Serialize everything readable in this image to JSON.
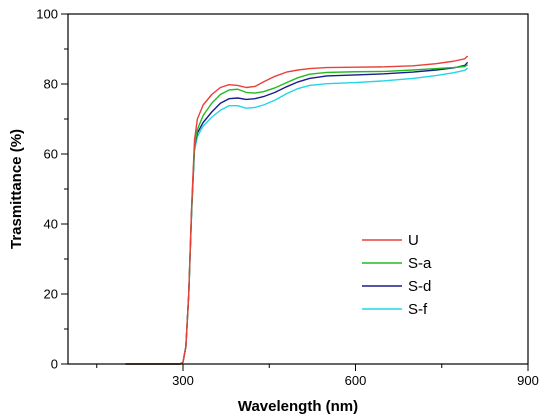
{
  "chart_data": {
    "type": "line",
    "title": "",
    "xlabel": "Wavelength (nm)",
    "ylabel": "Trasmittance (%)",
    "xlim": [
      100,
      900
    ],
    "ylim": [
      0,
      100
    ],
    "x_ticks": [
      300,
      600,
      900
    ],
    "y_ticks": [
      0,
      20,
      40,
      60,
      80,
      100
    ],
    "legend_position": "center-right",
    "grid": false,
    "series": [
      {
        "name": "U",
        "color": "#e8403a",
        "points": [
          [
            200,
            0
          ],
          [
            295,
            0
          ],
          [
            300,
            0.5
          ],
          [
            305,
            5
          ],
          [
            310,
            20
          ],
          [
            315,
            45
          ],
          [
            320,
            64
          ],
          [
            325,
            70
          ],
          [
            335,
            74
          ],
          [
            350,
            77
          ],
          [
            365,
            79
          ],
          [
            380,
            79.8
          ],
          [
            395,
            79.6
          ],
          [
            410,
            79
          ],
          [
            425,
            79.3
          ],
          [
            440,
            80.6
          ],
          [
            460,
            82.2
          ],
          [
            480,
            83.4
          ],
          [
            500,
            84
          ],
          [
            520,
            84.4
          ],
          [
            550,
            84.7
          ],
          [
            600,
            84.8
          ],
          [
            650,
            84.9
          ],
          [
            700,
            85.2
          ],
          [
            740,
            85.8
          ],
          [
            770,
            86.5
          ],
          [
            790,
            87.2
          ],
          [
            795,
            88
          ]
        ]
      },
      {
        "name": "S-a",
        "color": "#22bb22",
        "points": [
          [
            200,
            0
          ],
          [
            295,
            0
          ],
          [
            300,
            0.5
          ],
          [
            305,
            5
          ],
          [
            310,
            20
          ],
          [
            315,
            44
          ],
          [
            320,
            62
          ],
          [
            325,
            67
          ],
          [
            335,
            71
          ],
          [
            350,
            74.5
          ],
          [
            365,
            77
          ],
          [
            380,
            78.3
          ],
          [
            395,
            78.5
          ],
          [
            410,
            77.6
          ],
          [
            425,
            77.4
          ],
          [
            440,
            77.8
          ],
          [
            460,
            78.9
          ],
          [
            480,
            80.4
          ],
          [
            500,
            81.8
          ],
          [
            520,
            82.8
          ],
          [
            550,
            83.3
          ],
          [
            600,
            83.5
          ],
          [
            650,
            83.6
          ],
          [
            700,
            84
          ],
          [
            740,
            84.4
          ],
          [
            770,
            84.7
          ],
          [
            790,
            85
          ],
          [
            795,
            85.5
          ]
        ]
      },
      {
        "name": "S-d",
        "color": "#1c1c8c",
        "points": [
          [
            200,
            0
          ],
          [
            295,
            0
          ],
          [
            300,
            0.5
          ],
          [
            305,
            5
          ],
          [
            310,
            20
          ],
          [
            315,
            44
          ],
          [
            320,
            62
          ],
          [
            325,
            66
          ],
          [
            335,
            69
          ],
          [
            350,
            72
          ],
          [
            365,
            74.5
          ],
          [
            380,
            75.8
          ],
          [
            395,
            76
          ],
          [
            410,
            75.6
          ],
          [
            425,
            75.8
          ],
          [
            440,
            76.4
          ],
          [
            460,
            77.6
          ],
          [
            480,
            79.2
          ],
          [
            500,
            80.6
          ],
          [
            520,
            81.6
          ],
          [
            550,
            82.3
          ],
          [
            600,
            82.6
          ],
          [
            650,
            82.9
          ],
          [
            700,
            83.4
          ],
          [
            740,
            84
          ],
          [
            770,
            84.6
          ],
          [
            790,
            85.3
          ],
          [
            795,
            86.2
          ]
        ]
      },
      {
        "name": "S-f",
        "color": "#22d6e6",
        "points": [
          [
            200,
            0
          ],
          [
            295,
            0
          ],
          [
            300,
            0.5
          ],
          [
            305,
            5
          ],
          [
            310,
            20
          ],
          [
            315,
            43
          ],
          [
            320,
            61
          ],
          [
            325,
            65
          ],
          [
            335,
            68
          ],
          [
            350,
            70.5
          ],
          [
            365,
            72.5
          ],
          [
            380,
            73.8
          ],
          [
            395,
            73.8
          ],
          [
            410,
            73.1
          ],
          [
            425,
            73.3
          ],
          [
            440,
            74
          ],
          [
            460,
            75.4
          ],
          [
            480,
            77.2
          ],
          [
            500,
            78.7
          ],
          [
            520,
            79.6
          ],
          [
            550,
            80.1
          ],
          [
            600,
            80.4
          ],
          [
            650,
            80.9
          ],
          [
            700,
            81.6
          ],
          [
            740,
            82.4
          ],
          [
            770,
            83.2
          ],
          [
            790,
            83.9
          ],
          [
            795,
            84.5
          ]
        ]
      }
    ]
  }
}
